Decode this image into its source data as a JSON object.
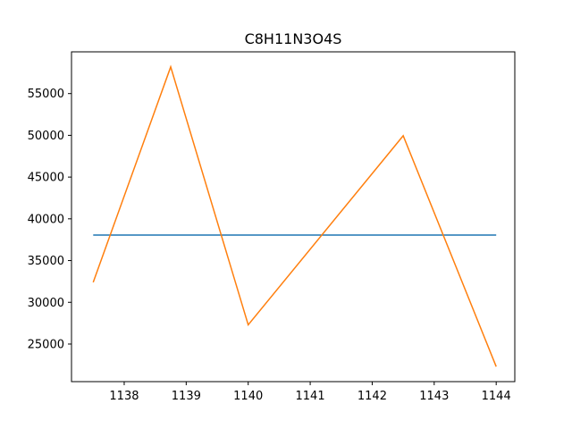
{
  "chart_data": {
    "type": "line",
    "title": "C8H11N3O4S",
    "xlabel": "",
    "ylabel": "",
    "xlim": [
      1137.15,
      1144.3
    ],
    "ylim": [
      20500,
      60000
    ],
    "grid": false,
    "x_ticks": [
      1138,
      1139,
      1140,
      1141,
      1142,
      1143,
      1144
    ],
    "y_ticks": [
      25000,
      30000,
      35000,
      40000,
      45000,
      50000,
      55000
    ],
    "series": [
      {
        "color": "#1f77b4",
        "x": [
          1137.5,
          1144.0
        ],
        "y": [
          38050,
          38050
        ]
      },
      {
        "color": "#ff7f0e",
        "x": [
          1137.5,
          1138.75,
          1140.0,
          1142.5,
          1144.0
        ],
        "y": [
          32400,
          58200,
          27300,
          49950,
          22300
        ]
      }
    ]
  }
}
